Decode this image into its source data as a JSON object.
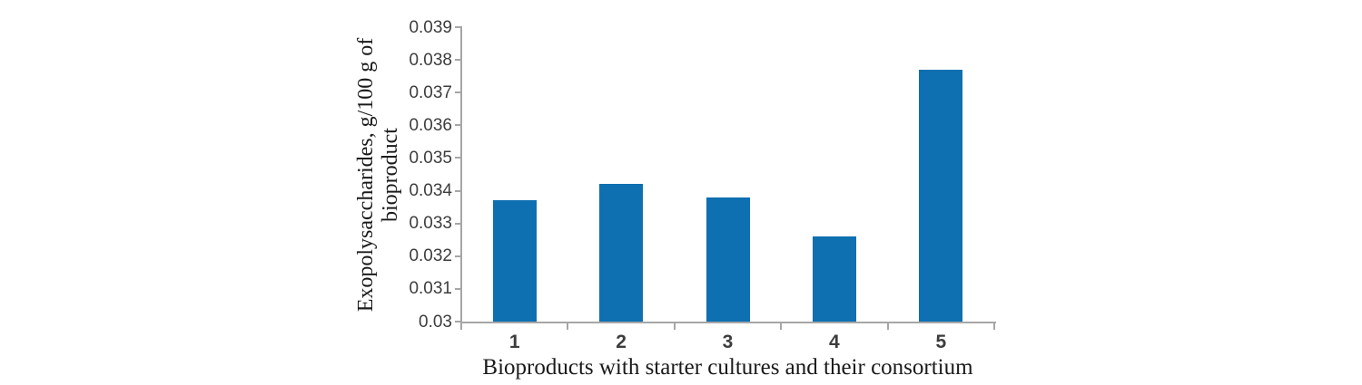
{
  "chart_data": {
    "type": "bar",
    "categories": [
      "1",
      "2",
      "3",
      "4",
      "5"
    ],
    "values": [
      0.0337,
      0.0342,
      0.0338,
      0.0326,
      0.0377
    ],
    "title": "",
    "xlabel": "Bioproducts with starter cultures and their consortium",
    "ylabel": "Exopolysaccharides, g/100 g of bioproduct",
    "ylabel_lines": [
      "Exopolysaccharides, g/100 g of",
      "bioproduct"
    ],
    "ylim": [
      0.03,
      0.039
    ],
    "ytick_step": 0.001,
    "yticks": [
      "0.039",
      "0.038",
      "0.037",
      "0.036",
      "0.035",
      "0.034",
      "0.033",
      "0.032",
      "0.031",
      "0.03"
    ],
    "grid": false,
    "legend": null,
    "bar_color": "#0e6fb1",
    "axis_color": "#a6a6a6",
    "tick_label_color": "#3d3d3d",
    "title_text_color": "#1a1a1a"
  }
}
